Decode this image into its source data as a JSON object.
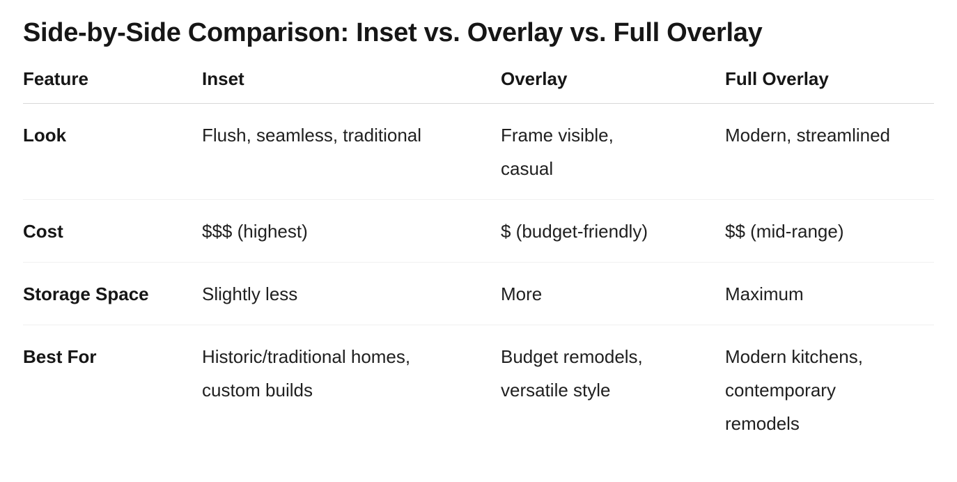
{
  "page": {
    "title": "Side-by-Side Comparison: Inset vs. Overlay vs. Full Overlay"
  },
  "table": {
    "columns": [
      "Feature",
      "Inset",
      "Overlay",
      "Full Overlay"
    ],
    "rows": [
      {
        "feature": "Look",
        "inset": "Flush, seamless, traditional",
        "overlay": "Frame visible, casual",
        "full_overlay": "Modern, streamlined"
      },
      {
        "feature": "Cost",
        "inset": "$$$ (highest)",
        "overlay": "$ (budget-friendly)",
        "full_overlay": "$$ (mid-range)"
      },
      {
        "feature": "Storage Space",
        "inset": "Slightly less",
        "overlay": "More",
        "full_overlay": "Maximum"
      },
      {
        "feature": "Best For",
        "inset": "Historic/traditional homes, custom builds",
        "overlay": "Budget remodels, versatile style",
        "full_overlay": "Modern kitchens, contemporary remodels"
      }
    ]
  },
  "colors": {
    "background": "#ffffff",
    "heading": "#161616",
    "text": "#202020",
    "header_border": "#d8d8d8",
    "row_border": "#f0f0f0"
  }
}
